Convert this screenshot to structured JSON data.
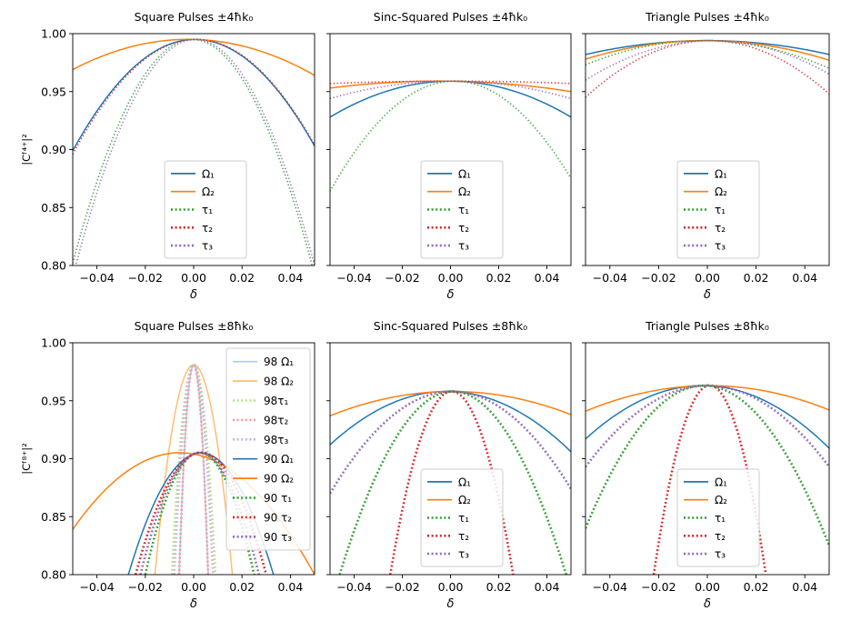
{
  "chart_data": [
    {
      "type": "line",
      "title": "Square Pulses ±4ħk₀",
      "xlabel": "δ",
      "ylabel": "|Cᶠ⁴⁺|²",
      "xlim": [
        -0.05,
        0.05
      ],
      "ylim": [
        0.8,
        1.0
      ],
      "x_ticks": [
        -0.04,
        -0.02,
        0.0,
        0.02,
        0.04
      ],
      "x_tick_labels": [
        "−0.04",
        "−0.02",
        "0.00",
        "0.02",
        "0.04"
      ],
      "y_ticks": [
        0.8,
        0.85,
        0.9,
        0.95,
        1.0
      ],
      "y_tick_labels": [
        "0.80",
        "0.85",
        "0.90",
        "0.95",
        "1.00"
      ],
      "show_yticklabels": true,
      "legend_location": "lower center",
      "series": [
        {
          "name": "Ω₁",
          "color": "#1f77b4",
          "style": "solid",
          "peak": 0.995,
          "x": [
            -0.05,
            0.0,
            0.05
          ],
          "y": [
            0.899,
            0.995,
            0.903
          ]
        },
        {
          "name": "Ω₂",
          "color": "#ff7f0e",
          "style": "solid",
          "peak": 0.995,
          "x": [
            -0.05,
            0.0,
            0.05
          ],
          "y": [
            0.969,
            0.995,
            0.964
          ]
        },
        {
          "name": "τ₁",
          "color": "#2ca02c",
          "style": "dotted",
          "peak": 0.995,
          "x": [
            -0.05,
            0.0,
            0.05
          ],
          "y": [
            0.802,
            0.995,
            0.792
          ]
        },
        {
          "name": "τ₂",
          "color": "#d62728",
          "style": "dotted",
          "peak": 0.995,
          "x": [
            -0.05,
            0.0,
            0.05
          ],
          "y": [
            0.896,
            0.995,
            0.904
          ]
        },
        {
          "name": "τ₃",
          "color": "#9467bd",
          "style": "dotted",
          "peak": 0.995,
          "x": [
            -0.05,
            0.0,
            0.05
          ],
          "y": [
            0.79,
            0.995,
            0.8
          ]
        }
      ]
    },
    {
      "type": "line",
      "title": "Sinc-Squared Pulses ±4ħk₀",
      "xlabel": "δ",
      "ylabel": "",
      "xlim": [
        -0.05,
        0.05
      ],
      "ylim": [
        0.8,
        1.0
      ],
      "x_ticks": [
        -0.04,
        -0.02,
        0.0,
        0.02,
        0.04
      ],
      "x_tick_labels": [
        "−0.04",
        "−0.02",
        "0.00",
        "0.02",
        "0.04"
      ],
      "y_ticks": [
        0.8,
        0.85,
        0.9,
        0.95,
        1.0
      ],
      "y_tick_labels": [],
      "show_yticklabels": false,
      "legend_location": "lower center",
      "series": [
        {
          "name": "Ω₁",
          "color": "#1f77b4",
          "style": "solid",
          "peak": 0.959,
          "x": [
            -0.05,
            0.0,
            0.05
          ],
          "y": [
            0.928,
            0.959,
            0.928
          ]
        },
        {
          "name": "Ω₂",
          "color": "#ff7f0e",
          "style": "solid",
          "peak": 0.959,
          "x": [
            -0.05,
            0.0,
            0.05
          ],
          "y": [
            0.953,
            0.959,
            0.95
          ]
        },
        {
          "name": "τ₁",
          "color": "#2ca02c",
          "style": "dotted",
          "peak": 0.959,
          "x": [
            -0.05,
            0.0,
            0.05
          ],
          "y": [
            0.864,
            0.959,
            0.875
          ]
        },
        {
          "name": "τ₂",
          "color": "#d62728",
          "style": "dotted",
          "peak": 0.959,
          "x": [
            -0.05,
            0.0,
            0.05
          ],
          "y": [
            0.957,
            0.959,
            0.957
          ]
        },
        {
          "name": "τ₃",
          "color": "#9467bd",
          "style": "dotted",
          "peak": 0.959,
          "x": [
            -0.05,
            0.0,
            0.05
          ],
          "y": [
            0.944,
            0.959,
            0.944
          ]
        }
      ]
    },
    {
      "type": "line",
      "title": "Triangle Pulses ±4ħk₀",
      "xlabel": "δ",
      "ylabel": "",
      "xlim": [
        -0.05,
        0.05
      ],
      "ylim": [
        0.8,
        1.0
      ],
      "x_ticks": [
        -0.04,
        -0.02,
        0.0,
        0.02,
        0.04
      ],
      "x_tick_labels": [
        "−0.04",
        "−0.02",
        "0.00",
        "0.02",
        "0.04"
      ],
      "y_ticks": [
        0.8,
        0.85,
        0.9,
        0.95,
        1.0
      ],
      "y_tick_labels": [],
      "show_yticklabels": false,
      "legend_location": "lower center",
      "series": [
        {
          "name": "Ω₁",
          "color": "#1f77b4",
          "style": "solid",
          "peak": 0.994,
          "x": [
            -0.05,
            0.0,
            0.05
          ],
          "y": [
            0.982,
            0.994,
            0.982
          ]
        },
        {
          "name": "Ω₂",
          "color": "#ff7f0e",
          "style": "solid",
          "peak": 0.994,
          "x": [
            -0.05,
            0.0,
            0.05
          ],
          "y": [
            0.978,
            0.994,
            0.977
          ]
        },
        {
          "name": "τ₁",
          "color": "#2ca02c",
          "style": "dotted",
          "peak": 0.994,
          "x": [
            -0.05,
            0.0,
            0.05
          ],
          "y": [
            0.973,
            0.994,
            0.97
          ]
        },
        {
          "name": "τ₂",
          "color": "#d62728",
          "style": "dotted",
          "peak": 0.994,
          "x": [
            -0.05,
            0.0,
            0.05
          ],
          "y": [
            0.945,
            0.994,
            0.948
          ]
        },
        {
          "name": "τ₃",
          "color": "#9467bd",
          "style": "dotted",
          "peak": 0.994,
          "x": [
            -0.05,
            0.0,
            0.05
          ],
          "y": [
            0.96,
            0.994,
            0.965
          ]
        }
      ]
    },
    {
      "type": "line",
      "title": "Square Pulses ±8ħk₀",
      "xlabel": "δ",
      "ylabel": "|Cᶠ⁸⁺|²",
      "xlim": [
        -0.05,
        0.05
      ],
      "ylim": [
        0.8,
        1.0
      ],
      "x_ticks": [
        -0.04,
        -0.02,
        0.0,
        0.02,
        0.04
      ],
      "x_tick_labels": [
        "−0.04",
        "−0.02",
        "0.00",
        "0.02",
        "0.04"
      ],
      "y_ticks": [
        0.8,
        0.85,
        0.9,
        0.95,
        1.0
      ],
      "y_tick_labels": [
        "0.80",
        "0.85",
        "0.90",
        "0.95",
        "1.00"
      ],
      "show_yticklabels": true,
      "legend_location": "upper right",
      "series": [
        {
          "name": "98 Ω₁",
          "color": "#a6cee3",
          "style": "solid",
          "peak": 0.981,
          "x": [
            -0.006,
            0.0,
            0.006
          ],
          "y": [
            0.8,
            0.981,
            0.8
          ]
        },
        {
          "name": "98 Ω₂",
          "color": "#fdbf6f",
          "style": "solid",
          "peak": 0.981,
          "x": [
            -0.016,
            0.0,
            0.016
          ],
          "y": [
            0.8,
            0.981,
            0.8
          ]
        },
        {
          "name": "98τ₁",
          "color": "#b2df8a",
          "style": "dotted",
          "peak": 0.981,
          "x": [
            -0.009,
            0.0,
            0.009
          ],
          "y": [
            0.8,
            0.981,
            0.8
          ]
        },
        {
          "name": "98τ₂",
          "color": "#fb9a99",
          "style": "dotted",
          "peak": 0.981,
          "x": [
            -0.006,
            0.0,
            0.006
          ],
          "y": [
            0.8,
            0.981,
            0.8
          ]
        },
        {
          "name": "98τ₃",
          "color": "#cab2d6",
          "style": "dotted",
          "peak": 0.981,
          "x": [
            -0.008,
            0.0,
            0.008
          ],
          "y": [
            0.8,
            0.981,
            0.8
          ]
        },
        {
          "name": "90 Ω₁",
          "color": "#1f77b4",
          "style": "solid",
          "peak": 0.904,
          "x": [
            -0.027,
            0.0,
            0.033
          ],
          "y": [
            0.8,
            0.904,
            0.8
          ]
        },
        {
          "name": "90 Ω₂",
          "color": "#ff7f0e",
          "style": "solid",
          "peak": 0.904,
          "x": [
            -0.05,
            0.0,
            0.05
          ],
          "y": [
            0.839,
            0.904,
            0.8
          ]
        },
        {
          "name": "90 τ₁",
          "color": "#2ca02c",
          "style": "dotted",
          "peak": 0.904,
          "x": [
            -0.02,
            0.0,
            0.025
          ],
          "y": [
            0.8,
            0.904,
            0.8
          ]
        },
        {
          "name": "90 τ₂",
          "color": "#d62728",
          "style": "dotted",
          "peak": 0.904,
          "x": [
            -0.024,
            0.0,
            0.03
          ],
          "y": [
            0.8,
            0.904,
            0.8
          ]
        },
        {
          "name": "90 τ₃",
          "color": "#9467bd",
          "style": "dotted",
          "peak": 0.904,
          "x": [
            -0.022,
            0.0,
            0.027
          ],
          "y": [
            0.8,
            0.904,
            0.8
          ]
        }
      ]
    },
    {
      "type": "line",
      "title": "Sinc-Squared Pulses ±8ħk₀",
      "xlabel": "δ",
      "ylabel": "",
      "xlim": [
        -0.05,
        0.05
      ],
      "ylim": [
        0.8,
        1.0
      ],
      "x_ticks": [
        -0.04,
        -0.02,
        0.0,
        0.02,
        0.04
      ],
      "x_tick_labels": [
        "−0.04",
        "−0.02",
        "0.00",
        "0.02",
        "0.04"
      ],
      "y_ticks": [
        0.8,
        0.85,
        0.9,
        0.95,
        1.0
      ],
      "y_tick_labels": [],
      "show_yticklabels": false,
      "legend_location": "lower center",
      "series": [
        {
          "name": "Ω₁",
          "color": "#1f77b4",
          "style": "solid",
          "peak": 0.958,
          "x": [
            -0.05,
            0.0,
            0.05
          ],
          "y": [
            0.912,
            0.958,
            0.906
          ]
        },
        {
          "name": "Ω₂",
          "color": "#ff7f0e",
          "style": "solid",
          "peak": 0.958,
          "x": [
            -0.05,
            0.0,
            0.05
          ],
          "y": [
            0.937,
            0.958,
            0.938
          ]
        },
        {
          "name": "τ₁",
          "color": "#2ca02c",
          "style": "dotted",
          "peak": 0.958,
          "x": [
            -0.046,
            0.0,
            0.048
          ],
          "y": [
            0.8,
            0.958,
            0.8
          ]
        },
        {
          "name": "τ₂",
          "color": "#d62728",
          "style": "dotted",
          "peak": 0.958,
          "x": [
            -0.025,
            0.0,
            0.026
          ],
          "y": [
            0.8,
            0.958,
            0.8
          ]
        },
        {
          "name": "τ₃",
          "color": "#9467bd",
          "style": "dotted",
          "peak": 0.958,
          "x": [
            -0.05,
            0.0,
            0.05
          ],
          "y": [
            0.87,
            0.958,
            0.874
          ]
        }
      ]
    },
    {
      "type": "line",
      "title": "Triangle Pulses ±8ħk₀",
      "xlabel": "δ",
      "ylabel": "",
      "xlim": [
        -0.05,
        0.05
      ],
      "ylim": [
        0.8,
        1.0
      ],
      "x_ticks": [
        -0.04,
        -0.02,
        0.0,
        0.02,
        0.04
      ],
      "x_tick_labels": [
        "−0.04",
        "−0.02",
        "0.00",
        "0.02",
        "0.04"
      ],
      "y_ticks": [
        0.8,
        0.85,
        0.9,
        0.95,
        1.0
      ],
      "y_tick_labels": [],
      "show_yticklabels": false,
      "legend_location": "lower center",
      "series": [
        {
          "name": "Ω₁",
          "color": "#1f77b4",
          "style": "solid",
          "peak": 0.963,
          "x": [
            -0.05,
            0.0,
            0.05
          ],
          "y": [
            0.917,
            0.963,
            0.909
          ]
        },
        {
          "name": "Ω₂",
          "color": "#ff7f0e",
          "style": "solid",
          "peak": 0.963,
          "x": [
            -0.05,
            0.0,
            0.05
          ],
          "y": [
            0.941,
            0.963,
            0.942
          ]
        },
        {
          "name": "τ₁",
          "color": "#2ca02c",
          "style": "dotted",
          "peak": 0.963,
          "x": [
            -0.05,
            0.0,
            0.05
          ],
          "y": [
            0.84,
            0.963,
            0.825
          ]
        },
        {
          "name": "τ₂",
          "color": "#d62728",
          "style": "dotted",
          "peak": 0.963,
          "x": [
            -0.022,
            0.0,
            0.024
          ],
          "y": [
            0.8,
            0.963,
            0.8
          ]
        },
        {
          "name": "τ₃",
          "color": "#9467bd",
          "style": "dotted",
          "peak": 0.963,
          "x": [
            -0.05,
            0.0,
            0.05
          ],
          "y": [
            0.893,
            0.963,
            0.893
          ]
        }
      ]
    }
  ]
}
